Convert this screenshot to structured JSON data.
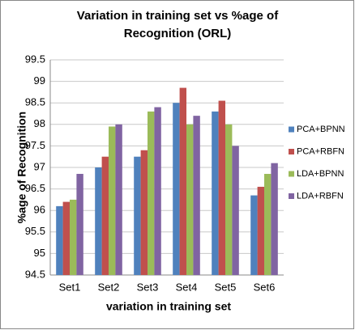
{
  "chart_data": {
    "type": "bar",
    "title": [
      "Variation in training set vs %age of",
      "Recognition (ORL)"
    ],
    "x_label": "variation in training set",
    "y_label": "%age of Recognition",
    "categories": [
      "Set1",
      "Set2",
      "Set3",
      "Set4",
      "Set5",
      "Set6"
    ],
    "series": [
      {
        "name": "PCA+BPNN",
        "color": "#4f81bd",
        "values": [
          96.1,
          97.0,
          97.25,
          98.5,
          98.3,
          96.35
        ]
      },
      {
        "name": "PCA+RBFN",
        "color": "#c0504d",
        "values": [
          96.2,
          97.25,
          97.4,
          98.85,
          98.55,
          96.55
        ]
      },
      {
        "name": "LDA+BPNN",
        "color": "#9bbb59",
        "values": [
          96.25,
          97.95,
          98.3,
          98.0,
          98.0,
          96.85
        ]
      },
      {
        "name": "LDA+RBFN",
        "color": "#8064a2",
        "values": [
          96.85,
          98.0,
          98.4,
          98.2,
          97.5,
          97.1
        ]
      }
    ],
    "ylim": [
      94.5,
      99.5
    ],
    "yticks": [
      94.5,
      95,
      95.5,
      96,
      96.5,
      97,
      97.5,
      98,
      98.5,
      99,
      99.5
    ],
    "grid": true,
    "legend": "right"
  }
}
